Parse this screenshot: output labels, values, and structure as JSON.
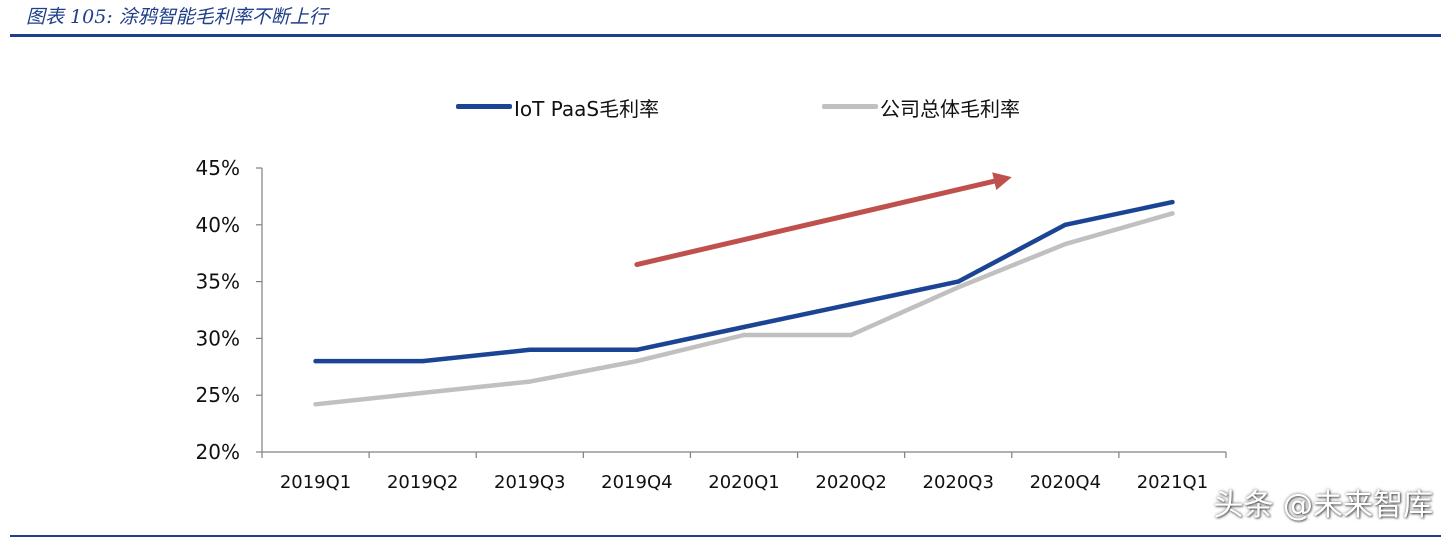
{
  "figure": {
    "title": "图表 105:  涂鸦智能毛利率不断上行",
    "watermark": "头条 @未来智库"
  },
  "colors": {
    "iot_paas": "#1b4594",
    "company": "#c0c0c0",
    "trend_arrow": "#c0504d",
    "axis": "#808080",
    "title": "#1f3f8a"
  },
  "chart_data": {
    "type": "line",
    "title": "",
    "xlabel": "",
    "ylabel": "",
    "categories": [
      "2019Q1",
      "2019Q2",
      "2019Q3",
      "2019Q4",
      "2020Q1",
      "2020Q2",
      "2020Q3",
      "2020Q4",
      "2021Q1"
    ],
    "series": [
      {
        "name": "IoT PaaS毛利率",
        "values": [
          28.0,
          28.0,
          29.0,
          29.0,
          31.0,
          33.0,
          35.0,
          40.0,
          42.0
        ]
      },
      {
        "name": "公司总体毛利率",
        "values": [
          24.2,
          25.2,
          26.2,
          28.0,
          30.3,
          30.3,
          34.5,
          38.3,
          41.0
        ]
      }
    ],
    "ylim": [
      20,
      45
    ],
    "yticks": [
      20,
      25,
      30,
      35,
      40,
      45
    ],
    "ytick_labels": [
      "20%",
      "25%",
      "30%",
      "35%",
      "40%",
      "45%"
    ],
    "grid": false,
    "legend_position": "top",
    "annotation": {
      "kind": "trend-arrow",
      "direction": "up",
      "from_category_index": 3.5,
      "to_category_index": 7.0,
      "from_value": 36.5,
      "to_value": 44.2
    }
  }
}
